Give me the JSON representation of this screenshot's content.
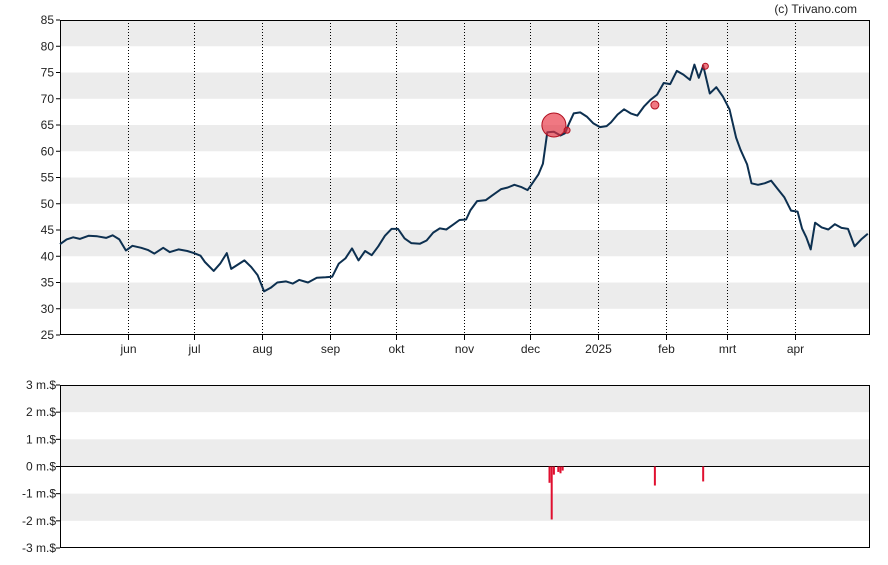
{
  "credit": "(c) Trivano.com",
  "colors": {
    "band": "#ececec",
    "price_line": "#0d3050",
    "marker": "#e8303f",
    "marker_outline": "#b01020",
    "volume_bar": "#e01030",
    "axis": "#000000",
    "month_grid": "#000000"
  },
  "chart_data": [
    {
      "type": "line",
      "x_ticks": [
        "jun",
        "jul",
        "aug",
        "sep",
        "okt",
        "nov",
        "dec",
        "2025",
        "feb",
        "mrt",
        "apr"
      ],
      "x_tick_dates": [
        "2024-06-01",
        "2024-07-01",
        "2024-08-01",
        "2024-09-01",
        "2024-10-01",
        "2024-11-01",
        "2024-12-01",
        "2025-01-01",
        "2025-02-01",
        "2025-03-01",
        "2025-04-01"
      ],
      "xlim": [
        "2024-05-01",
        "2025-05-05"
      ],
      "y_ticks": [
        "25",
        "30",
        "35",
        "40",
        "45",
        "50",
        "55",
        "60",
        "65",
        "70",
        "75",
        "80",
        "85"
      ],
      "ylim": [
        25,
        85
      ],
      "grid": "alternating horizontal bands, dotted vertical month lines",
      "series": [
        {
          "values": [
            [
              "2024-05-01",
              42.3
            ],
            [
              "2024-05-04",
              43.2
            ],
            [
              "2024-05-07",
              43.6
            ],
            [
              "2024-05-10",
              43.3
            ],
            [
              "2024-05-14",
              43.9
            ],
            [
              "2024-05-18",
              43.8
            ],
            [
              "2024-05-22",
              43.5
            ],
            [
              "2024-05-25",
              44.0
            ],
            [
              "2024-05-28",
              43.2
            ],
            [
              "2024-05-31",
              41.1
            ],
            [
              "2024-06-03",
              42.0
            ],
            [
              "2024-06-07",
              41.6
            ],
            [
              "2024-06-10",
              41.2
            ],
            [
              "2024-06-13",
              40.5
            ],
            [
              "2024-06-17",
              41.6
            ],
            [
              "2024-06-20",
              40.8
            ],
            [
              "2024-06-24",
              41.3
            ],
            [
              "2024-06-28",
              41.0
            ],
            [
              "2024-07-01",
              40.6
            ],
            [
              "2024-07-04",
              40.1
            ],
            [
              "2024-07-06",
              38.9
            ],
            [
              "2024-07-10",
              37.2
            ],
            [
              "2024-07-13",
              38.6
            ],
            [
              "2024-07-16",
              40.6
            ],
            [
              "2024-07-18",
              37.6
            ],
            [
              "2024-07-21",
              38.4
            ],
            [
              "2024-07-24",
              39.2
            ],
            [
              "2024-07-27",
              38.0
            ],
            [
              "2024-07-30",
              36.4
            ],
            [
              "2024-08-02",
              33.3
            ],
            [
              "2024-08-05",
              34.0
            ],
            [
              "2024-08-08",
              35.0
            ],
            [
              "2024-08-12",
              35.2
            ],
            [
              "2024-08-15",
              34.8
            ],
            [
              "2024-08-18",
              35.5
            ],
            [
              "2024-08-22",
              35.0
            ],
            [
              "2024-08-26",
              35.9
            ],
            [
              "2024-08-30",
              36.0
            ],
            [
              "2024-09-02",
              36.1
            ],
            [
              "2024-09-05",
              38.6
            ],
            [
              "2024-09-08",
              39.6
            ],
            [
              "2024-09-11",
              41.5
            ],
            [
              "2024-09-14",
              39.2
            ],
            [
              "2024-09-17",
              41.0
            ],
            [
              "2024-09-20",
              40.2
            ],
            [
              "2024-09-23",
              41.9
            ],
            [
              "2024-09-26",
              43.9
            ],
            [
              "2024-09-29",
              45.2
            ],
            [
              "2024-10-02",
              45.2
            ],
            [
              "2024-10-05",
              43.4
            ],
            [
              "2024-10-08",
              42.5
            ],
            [
              "2024-10-12",
              42.4
            ],
            [
              "2024-10-15",
              43.0
            ],
            [
              "2024-10-18",
              44.5
            ],
            [
              "2024-10-21",
              45.3
            ],
            [
              "2024-10-24",
              45.1
            ],
            [
              "2024-10-27",
              46.0
            ],
            [
              "2024-10-30",
              46.9
            ],
            [
              "2024-11-02",
              47.0
            ],
            [
              "2024-11-04",
              48.8
            ],
            [
              "2024-11-07",
              50.5
            ],
            [
              "2024-11-11",
              50.7
            ],
            [
              "2024-11-14",
              51.6
            ],
            [
              "2024-11-18",
              52.8
            ],
            [
              "2024-11-21",
              53.1
            ],
            [
              "2024-11-24",
              53.6
            ],
            [
              "2024-11-27",
              53.2
            ],
            [
              "2024-11-30",
              52.6
            ],
            [
              "2024-12-02",
              53.8
            ],
            [
              "2024-12-05",
              55.6
            ],
            [
              "2024-12-07",
              57.6
            ],
            [
              "2024-12-09",
              63.6
            ],
            [
              "2024-12-12",
              63.7
            ],
            [
              "2024-12-15",
              63.0
            ],
            [
              "2024-12-17",
              63.4
            ],
            [
              "2024-12-19",
              65.4
            ],
            [
              "2024-12-21",
              67.2
            ],
            [
              "2024-12-24",
              67.4
            ],
            [
              "2024-12-27",
              66.6
            ],
            [
              "2024-12-30",
              65.3
            ],
            [
              "2025-01-02",
              64.6
            ],
            [
              "2025-01-05",
              64.8
            ],
            [
              "2025-01-07",
              65.5
            ],
            [
              "2025-01-10",
              67.0
            ],
            [
              "2025-01-13",
              68.0
            ],
            [
              "2025-01-16",
              67.2
            ],
            [
              "2025-01-19",
              66.8
            ],
            [
              "2025-01-22",
              68.5
            ],
            [
              "2025-01-25",
              69.8
            ],
            [
              "2025-01-28",
              70.8
            ],
            [
              "2025-01-31",
              73.0
            ],
            [
              "2025-02-03",
              72.8
            ],
            [
              "2025-02-06",
              75.3
            ],
            [
              "2025-02-09",
              74.6
            ],
            [
              "2025-02-12",
              73.6
            ],
            [
              "2025-02-14",
              76.5
            ],
            [
              "2025-02-16",
              74.0
            ],
            [
              "2025-02-18",
              76.3
            ],
            [
              "2025-02-21",
              71.0
            ],
            [
              "2025-02-24",
              72.2
            ],
            [
              "2025-02-27",
              70.4
            ],
            [
              "2025-03-02",
              68.0
            ],
            [
              "2025-03-05",
              62.6
            ],
            [
              "2025-03-07",
              60.3
            ],
            [
              "2025-03-10",
              57.5
            ],
            [
              "2025-03-12",
              53.9
            ],
            [
              "2025-03-15",
              53.6
            ],
            [
              "2025-03-18",
              53.9
            ],
            [
              "2025-03-21",
              54.4
            ],
            [
              "2025-03-24",
              52.8
            ],
            [
              "2025-03-27",
              51.2
            ],
            [
              "2025-03-30",
              48.7
            ],
            [
              "2025-04-02",
              48.5
            ],
            [
              "2025-04-04",
              45.3
            ],
            [
              "2025-04-06",
              43.6
            ],
            [
              "2025-04-08",
              41.3
            ],
            [
              "2025-04-10",
              46.4
            ],
            [
              "2025-04-13",
              45.5
            ],
            [
              "2025-04-16",
              45.1
            ],
            [
              "2025-04-19",
              46.1
            ],
            [
              "2025-04-22",
              45.4
            ],
            [
              "2025-04-25",
              45.2
            ],
            [
              "2025-04-28",
              41.9
            ],
            [
              "2025-05-01",
              43.2
            ],
            [
              "2025-05-04",
              44.3
            ]
          ]
        }
      ],
      "markers": [
        {
          "x": "2024-12-12",
          "y": 65.0,
          "size": "large"
        },
        {
          "x": "2025-01-27",
          "y": 68.8,
          "size": "small"
        },
        {
          "x": "2025-02-19",
          "y": 76.2,
          "size": "tiny"
        },
        {
          "x": "2024-12-18",
          "y": 64.0,
          "size": "tiny"
        }
      ]
    },
    {
      "type": "bar",
      "unit": "m.$",
      "y_ticks": [
        "3 m.$",
        "2 m.$",
        "1 m.$",
        "0 m.$",
        "-1 m.$",
        "-2 m.$",
        "-3 m.$"
      ],
      "ylim": [
        -3,
        3
      ],
      "series": [
        {
          "values": [
            [
              "2024-12-10",
              -0.6
            ],
            [
              "2024-12-11",
              -1.95
            ],
            [
              "2024-12-12",
              -0.3
            ],
            [
              "2024-12-14",
              -0.2
            ],
            [
              "2024-12-15",
              -0.25
            ],
            [
              "2024-12-16",
              -0.15
            ],
            [
              "2025-01-27",
              -0.7
            ],
            [
              "2025-02-18",
              -0.55
            ]
          ]
        }
      ]
    }
  ]
}
